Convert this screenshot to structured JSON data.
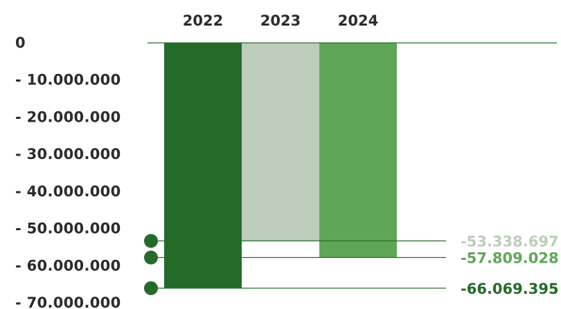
{
  "chart_data": {
    "type": "bar",
    "title": "",
    "xlabel": "",
    "ylabel": "",
    "categories": [
      "2022",
      "2023",
      "2024"
    ],
    "values": [
      -66069395,
      -53338697,
      -57809028
    ],
    "value_labels": [
      "-66.069.395",
      "-53.338.697",
      "-57.809.028"
    ],
    "colors": [
      "#246b2a",
      "#bdcdbb",
      "#5fa756"
    ],
    "ylim": [
      -70000000,
      0
    ],
    "y_ticks": [
      0,
      -10000000,
      -20000000,
      -30000000,
      -40000000,
      -50000000,
      -60000000,
      -70000000
    ],
    "y_tick_labels": [
      "0",
      "- 10.000.000",
      "- 20.000.000",
      "- 30.000.000",
      "- 40.000.000",
      "- 50.000.000",
      "- 60.000.000",
      "- 70.000.000"
    ],
    "grid": false,
    "legend": "none"
  }
}
